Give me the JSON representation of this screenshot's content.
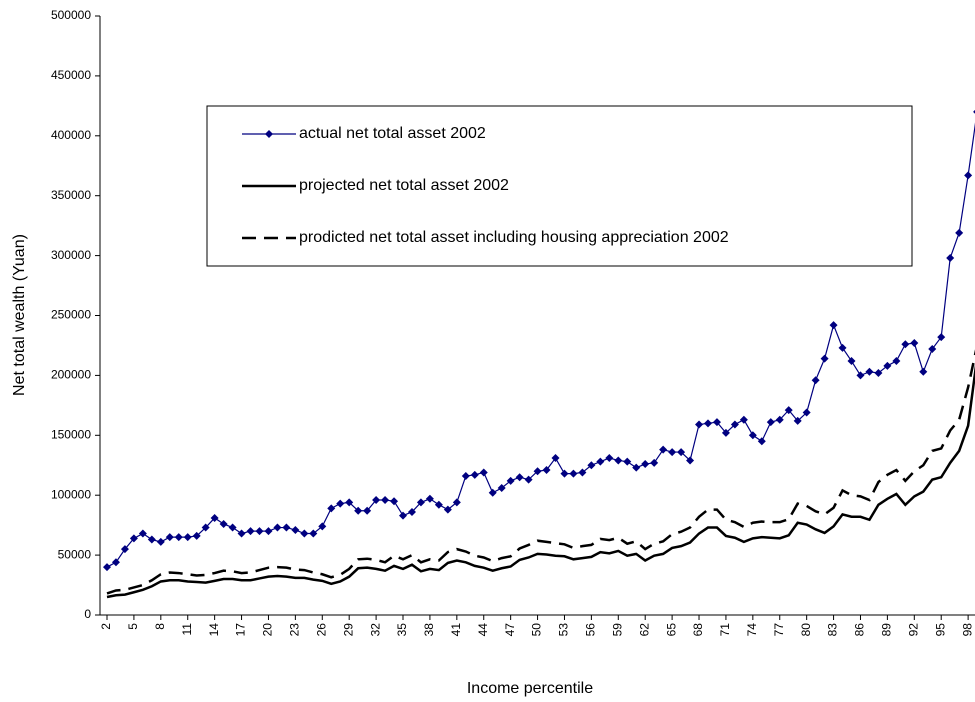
{
  "chart_data": {
    "type": "line",
    "x_label": "Income percentile",
    "y_label": "Net total wealth (Yuan)",
    "categories": [
      "2",
      null,
      null,
      "5",
      null,
      null,
      "8",
      null,
      null,
      "11",
      null,
      null,
      "14",
      null,
      null,
      "17",
      null,
      null,
      "20",
      null,
      null,
      "23",
      null,
      null,
      "26",
      null,
      null,
      "29",
      null,
      null,
      "32",
      null,
      null,
      "35",
      null,
      null,
      "38",
      null,
      null,
      "41",
      null,
      null,
      "44",
      null,
      null,
      "47",
      null,
      null,
      "50",
      null,
      null,
      "53",
      null,
      null,
      "56",
      null,
      null,
      "59",
      null,
      null,
      "62",
      null,
      null,
      "65",
      null,
      null,
      "68",
      null,
      null,
      "71",
      null,
      null,
      "74",
      null,
      null,
      "77",
      null,
      null,
      "80",
      null,
      null,
      "83",
      null,
      null,
      "86",
      null,
      null,
      "89",
      null,
      null,
      "92",
      null,
      null,
      "95",
      null,
      null,
      "98",
      null
    ],
    "ylim": [
      0,
      500000
    ],
    "yticks": [
      0,
      50000,
      100000,
      150000,
      200000,
      250000,
      300000,
      350000,
      400000,
      450000,
      500000
    ],
    "grid": false,
    "series": [
      {
        "name": "actual net total asset 2002",
        "color": "#000080",
        "marker": "diamond",
        "dash": false,
        "values": [
          40000,
          44000,
          55000,
          64000,
          68000,
          63000,
          61000,
          65000,
          65000,
          65000,
          66000,
          73000,
          81000,
          76000,
          73000,
          68000,
          70000,
          70000,
          70000,
          73000,
          73000,
          71000,
          68000,
          68000,
          74000,
          89000,
          93000,
          94000,
          87000,
          87000,
          96000,
          96000,
          95000,
          83000,
          86000,
          94000,
          97000,
          92000,
          88000,
          94000,
          116000,
          117000,
          119000,
          102000,
          106000,
          112000,
          115000,
          113000,
          120000,
          121000,
          131000,
          118000,
          118000,
          119000,
          125000,
          128000,
          131000,
          129000,
          128000,
          123000,
          126000,
          127000,
          138000,
          136000,
          136000,
          129000,
          159000,
          160000,
          161000,
          152000,
          159000,
          163000,
          150000,
          145000,
          161000,
          163000,
          171000,
          162000,
          169000,
          196000,
          214000,
          242000,
          223000,
          212000,
          200000,
          203000,
          202000,
          208000,
          212000,
          226000,
          227000,
          203000,
          222000,
          232000,
          298000,
          319000,
          367000,
          420000
        ]
      },
      {
        "name": "projected net total asset 2002",
        "color": "#000000",
        "marker": "none",
        "dash": false,
        "values": [
          15000,
          16500,
          17000,
          19000,
          21000,
          24000,
          28000,
          29000,
          29000,
          28000,
          27500,
          27000,
          28500,
          30000,
          30000,
          29000,
          29000,
          30500,
          32000,
          32500,
          32000,
          31000,
          31000,
          29500,
          28500,
          26000,
          28000,
          32000,
          39000,
          39500,
          38500,
          37000,
          41000,
          38500,
          42000,
          36500,
          38500,
          37500,
          43500,
          45500,
          44000,
          41000,
          39500,
          37000,
          39000,
          40500,
          46000,
          48000,
          51000,
          50500,
          49500,
          49000,
          46500,
          47500,
          48500,
          52500,
          51500,
          53500,
          49500,
          51000,
          45500,
          49500,
          51000,
          56000,
          57500,
          60500,
          68000,
          73000,
          73000,
          66000,
          64500,
          61000,
          64000,
          65000,
          64500,
          64000,
          66500,
          77000,
          75500,
          71500,
          68500,
          74000,
          84000,
          82000,
          82000,
          79500,
          92000,
          97000,
          101000,
          92000,
          99000,
          103000,
          113000,
          115000,
          127000,
          137000,
          158000,
          215000
        ]
      },
      {
        "name": "prodicted net total asset including housing appreciation 2002",
        "color": "#000000",
        "marker": "none",
        "dash": true,
        "values": [
          18000,
          20500,
          21000,
          23000,
          25000,
          29000,
          34000,
          35500,
          35000,
          34000,
          33000,
          33500,
          35000,
          37000,
          36500,
          35000,
          35500,
          37500,
          39500,
          40000,
          39500,
          38000,
          37500,
          35500,
          34000,
          31500,
          33500,
          38500,
          46500,
          47000,
          46000,
          44000,
          49500,
          46500,
          50000,
          44000,
          46500,
          45500,
          52500,
          55000,
          53000,
          49500,
          48000,
          45000,
          47500,
          49000,
          55500,
          58500,
          62000,
          61000,
          60000,
          59000,
          56000,
          57500,
          58500,
          63500,
          62500,
          64500,
          59500,
          61500,
          55000,
          59500,
          61500,
          67500,
          69500,
          73000,
          82000,
          88000,
          88000,
          79500,
          77500,
          73500,
          77000,
          78000,
          77500,
          77500,
          80000,
          93000,
          91000,
          86500,
          84000,
          89500,
          104000,
          100000,
          99000,
          96000,
          111000,
          117000,
          121000,
          112000,
          120000,
          125000,
          137000,
          139000,
          154000,
          163000,
          190000,
          225000
        ]
      }
    ]
  }
}
